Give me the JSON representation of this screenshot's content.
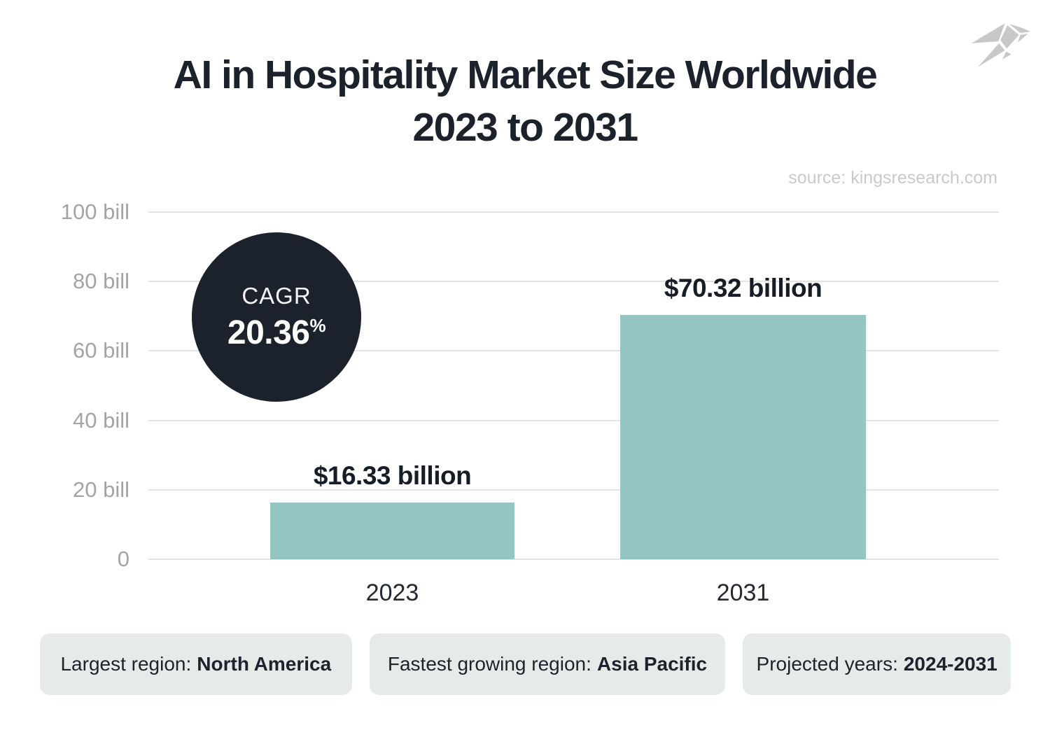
{
  "header": {
    "title_line1": "AI in Hospitality Market Size Worldwide",
    "title_line2": "2023 to 2031",
    "source": "source: kingsresearch.com"
  },
  "badge": {
    "label": "CAGR",
    "value": "20.36",
    "unit": "%"
  },
  "chart_data": {
    "type": "bar",
    "title": "AI in Hospitality Market Size Worldwide 2023 to 2031",
    "categories": [
      "2023",
      "2031"
    ],
    "values": [
      16.33,
      70.32
    ],
    "unit": "USD billions",
    "value_labels": [
      "$16.33 billion",
      "$70.32 billion"
    ],
    "y_ticks": [
      "100 bill",
      "80 bill",
      "60 bill",
      "40 bill",
      "20 bill",
      "0"
    ],
    "ylim": [
      0,
      100
    ],
    "grid": true,
    "legend": "none",
    "bar_color": "#94c5c2",
    "annotation": "CAGR 20.36%"
  },
  "footer": {
    "pills": [
      {
        "label": "Largest region:",
        "value": "North America"
      },
      {
        "label": "Fastest growing region:",
        "value": "Asia Pacific"
      },
      {
        "label": "Projected years:",
        "value": "2024-2031"
      }
    ]
  },
  "colors": {
    "bar": "#94c5c2",
    "dark": "#1b222c",
    "pill_bg": "#e4ebe8",
    "grid": "#e3e3e3",
    "tick_text": "#a3a4a6",
    "source_text": "#c7cacc",
    "logo": "#c6c8ca"
  },
  "icons": {
    "logo": "origami-bird"
  }
}
